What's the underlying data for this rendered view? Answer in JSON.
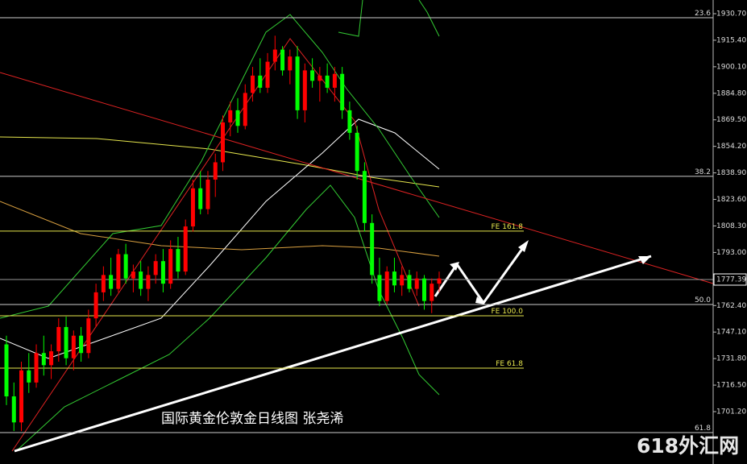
{
  "chart_data": {
    "type": "candlestick",
    "annotation": "国际黄金伦敦金日线图 张尧浠",
    "watermark": "618外汇网",
    "up_color": "#ff0000",
    "down_color": "#00ff00",
    "ylim": [
      1671.0,
      1938.6
    ],
    "yticks": [
      {
        "value": 1930.7,
        "label": "1930.70"
      },
      {
        "value": 1915.4,
        "label": "1915.40"
      },
      {
        "value": 1900.1,
        "label": "1900.10"
      },
      {
        "value": 1884.8,
        "label": "1884.80"
      },
      {
        "value": 1869.5,
        "label": "1869.50"
      },
      {
        "value": 1854.2,
        "label": "1854.20"
      },
      {
        "value": 1838.9,
        "label": "1838.90"
      },
      {
        "value": 1823.6,
        "label": "1823.60"
      },
      {
        "value": 1808.3,
        "label": "1808.30"
      },
      {
        "value": 1793.0,
        "label": "1793.00"
      },
      {
        "value": 1762.4,
        "label": "1762.40"
      },
      {
        "value": 1747.1,
        "label": "1747.10"
      },
      {
        "value": 1731.8,
        "label": "1731.80"
      },
      {
        "value": 1716.5,
        "label": "1716.50"
      },
      {
        "value": 1701.2,
        "label": "1701.20"
      }
    ],
    "current_price": 1777.39,
    "fib_levels": [
      {
        "label": "23.6",
        "price": 1928.4
      },
      {
        "label": "38.2",
        "price": 1836.9
      },
      {
        "label": "50.0",
        "price": 1763.0
      },
      {
        "label": "61.8",
        "price": 1689.1
      }
    ],
    "fe_levels": [
      {
        "label": "FE 161.8",
        "price": 1805.3
      },
      {
        "label": "FE 100.0",
        "price": 1756.5
      },
      {
        "label": "FE 61.8",
        "price": 1726.3
      }
    ],
    "open": [
      1740,
      1710,
      1695,
      1725,
      1718,
      1735,
      1728,
      1736,
      1750,
      1732,
      1745,
      1735,
      1755,
      1770,
      1780,
      1772,
      1792,
      1778,
      1782,
      1772,
      1780,
      1788,
      1775,
      1795,
      1782,
      1808,
      1830,
      1818,
      1835,
      1845,
      1868,
      1875,
      1866,
      1885,
      1895,
      1888,
      1903,
      1910,
      1898,
      1906,
      1875,
      1898,
      1892,
      1895,
      1888,
      1896,
      1875,
      1862,
      1840,
      1810,
      1780,
      1765,
      1782,
      1774,
      1780,
      1772,
      1778,
      1765,
      1775
    ],
    "high": [
      1745,
      1718,
      1730,
      1735,
      1740,
      1745,
      1740,
      1755,
      1756,
      1748,
      1750,
      1760,
      1775,
      1785,
      1790,
      1795,
      1798,
      1786,
      1788,
      1785,
      1792,
      1795,
      1800,
      1802,
      1812,
      1835,
      1840,
      1840,
      1850,
      1872,
      1880,
      1882,
      1890,
      1900,
      1905,
      1908,
      1918,
      1912,
      1910,
      1912,
      1902,
      1905,
      1900,
      1902,
      1900,
      1900,
      1880,
      1866,
      1845,
      1815,
      1790,
      1785,
      1790,
      1785,
      1783,
      1782,
      1780,
      1778,
      1782
    ],
    "low": [
      1705,
      1690,
      1690,
      1712,
      1715,
      1722,
      1720,
      1730,
      1728,
      1725,
      1730,
      1732,
      1750,
      1765,
      1768,
      1770,
      1775,
      1770,
      1768,
      1765,
      1775,
      1770,
      1772,
      1778,
      1780,
      1805,
      1815,
      1815,
      1825,
      1840,
      1860,
      1862,
      1864,
      1880,
      1885,
      1885,
      1898,
      1895,
      1890,
      1870,
      1868,
      1888,
      1880,
      1885,
      1880,
      1870,
      1858,
      1835,
      1805,
      1775,
      1762,
      1763,
      1770,
      1768,
      1770,
      1768,
      1760,
      1758,
      1770
    ],
    "close": [
      1710,
      1695,
      1725,
      1718,
      1735,
      1728,
      1736,
      1750,
      1732,
      1745,
      1735,
      1755,
      1770,
      1780,
      1772,
      1792,
      1778,
      1782,
      1772,
      1780,
      1788,
      1775,
      1795,
      1782,
      1808,
      1830,
      1818,
      1835,
      1845,
      1868,
      1875,
      1866,
      1885,
      1895,
      1888,
      1903,
      1910,
      1898,
      1906,
      1875,
      1898,
      1892,
      1895,
      1888,
      1896,
      1875,
      1862,
      1840,
      1810,
      1780,
      1765,
      1782,
      1774,
      1780,
      1772,
      1778,
      1765,
      1775,
      1778
    ]
  }
}
